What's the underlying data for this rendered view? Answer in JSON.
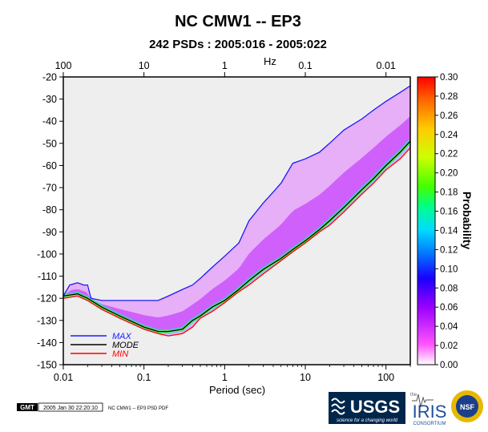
{
  "chart_data": {
    "type": "heatmap",
    "title": "NC CMW1 -- EP3",
    "subtitle": "242 PSDs : 2005:016 - 2005:022",
    "xlabel": "Period (sec)",
    "x_top_label": "Hz",
    "colorbar_label": "Probability",
    "x_scale": "log",
    "xlim": [
      0.01,
      200
    ],
    "ylim": [
      -150,
      -20
    ],
    "x_ticks": [
      "0.01",
      "0.1",
      "1",
      "10",
      "100"
    ],
    "x_top_ticks": [
      "100",
      "10",
      "1",
      "0.1",
      "0.01"
    ],
    "y_ticks": [
      "-20",
      "-30",
      "-40",
      "-50",
      "-60",
      "-70",
      "-80",
      "-90",
      "-100",
      "-110",
      "-120",
      "-130",
      "-140",
      "-150"
    ],
    "colorbar_ticks": [
      "0.00",
      "0.02",
      "0.04",
      "0.06",
      "0.08",
      "0.10",
      "0.12",
      "0.14",
      "0.16",
      "0.18",
      "0.20",
      "0.22",
      "0.24",
      "0.26",
      "0.28",
      "0.30"
    ],
    "colorbar_range": [
      0,
      0.3
    ],
    "legend": {
      "placement": "bottom-left"
    },
    "series": [
      {
        "name": "MAX",
        "color": "#1a1aff",
        "x": [
          0.01,
          0.012,
          0.015,
          0.018,
          0.02,
          0.022,
          0.03,
          0.05,
          0.1,
          0.15,
          0.2,
          0.3,
          0.4,
          0.5,
          0.7,
          1,
          1.5,
          2,
          3,
          4,
          5,
          7,
          10,
          15,
          20,
          30,
          50,
          70,
          100,
          150,
          200
        ],
        "y": [
          -119,
          -114,
          -113,
          -114,
          -114,
          -120,
          -121,
          -121,
          -121,
          -121,
          -119,
          -116,
          -114,
          -111,
          -106,
          -101,
          -95,
          -85,
          -77,
          -72,
          -68,
          -59,
          -57,
          -54,
          -50,
          -44,
          -39,
          -35,
          -31,
          -27,
          -24
        ]
      },
      {
        "name": "MODE",
        "color": "#000000",
        "x": [
          0.01,
          0.015,
          0.02,
          0.03,
          0.05,
          0.1,
          0.15,
          0.2,
          0.3,
          0.4,
          0.5,
          0.7,
          1,
          1.5,
          2,
          3,
          5,
          7,
          10,
          15,
          20,
          30,
          50,
          70,
          100,
          150,
          200
        ],
        "y": [
          -119,
          -118,
          -120,
          -124,
          -128,
          -133,
          -135,
          -135,
          -134,
          -130,
          -128,
          -124,
          -121,
          -116,
          -112,
          -107,
          -102,
          -98,
          -94,
          -89,
          -85,
          -79,
          -71,
          -66,
          -60,
          -54,
          -49
        ]
      },
      {
        "name": "MIN",
        "color": "#ff0000",
        "x": [
          0.01,
          0.015,
          0.02,
          0.03,
          0.05,
          0.1,
          0.15,
          0.2,
          0.3,
          0.4,
          0.5,
          0.7,
          1,
          1.5,
          2,
          3,
          5,
          7,
          10,
          15,
          20,
          30,
          50,
          70,
          100,
          150,
          200
        ],
        "y": [
          -120,
          -119,
          -121,
          -125,
          -129,
          -134,
          -136,
          -137,
          -136,
          -133,
          -129,
          -126,
          -122,
          -117,
          -114,
          -109,
          -103,
          -99,
          -95,
          -90,
          -87,
          -81,
          -73,
          -68,
          -62,
          -57,
          -52
        ]
      }
    ]
  },
  "footer": {
    "gmt_logo": "GMT",
    "timestamp": "2005 Jan 30 22:20:10",
    "caption": "NC CMW1 -- EP3 PSD PDF",
    "usgs_logo": "USGS",
    "usgs_tagline": "science for a changing world",
    "iris_prefix": "the",
    "iris_logo": "IRIS",
    "iris_sub": "CONSORTIUM",
    "nsf_logo": "NSF"
  },
  "colors": {
    "max": "#1a1aff",
    "mode": "#000000",
    "min": "#ff0000",
    "background": "#eeeeee",
    "usgs": "#00264c"
  }
}
